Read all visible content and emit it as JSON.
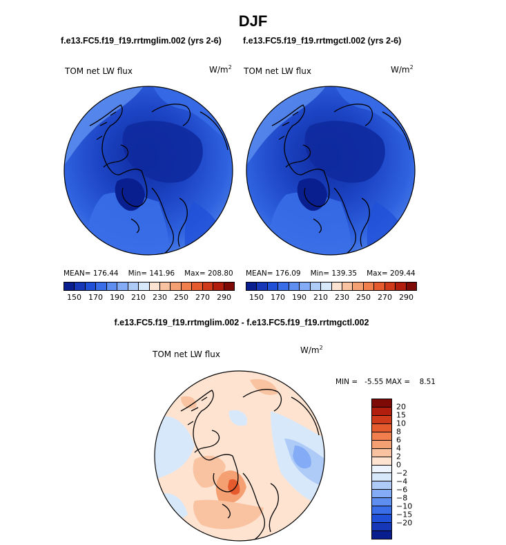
{
  "season": "DJF",
  "left_panel": {
    "title": "f.e13.FC5.f19_f19.rrtmglim.002 (yrs 2-6)",
    "variable": "TOM net LW flux",
    "units": "W/m",
    "units_exp": "2",
    "stats": {
      "mean": "MEAN= 176.44",
      "min": "Min= 141.96",
      "max": "Max= 208.80"
    }
  },
  "right_panel": {
    "title": "f.e13.FC5.f19_f19.rrtmgctl.002 (yrs 2-6)",
    "variable": "TOM net LW flux",
    "units": "W/m",
    "units_exp": "2",
    "stats": {
      "mean": "MEAN= 176.09",
      "min": "Min= 139.35",
      "max": "Max= 209.44"
    }
  },
  "diff_panel": {
    "title": "f.e13.FC5.f19_f19.rrtmglim.002 - f.e13.FC5.f19_f19.rrtmgctl.002",
    "variable": "TOM net LW flux",
    "units": "W/m",
    "units_exp": "2",
    "minmax": "MIN =   -5.55 MAX =    8.51"
  },
  "abs_colorbar": {
    "colors": [
      "#0a1f8f",
      "#1637b8",
      "#2150d8",
      "#3a6ee8",
      "#5d8ef0",
      "#84abf5",
      "#aecbf8",
      "#d8e8fb",
      "#fde3d0",
      "#f9c2a1",
      "#f5a073",
      "#f17f4d",
      "#e65b2e",
      "#cf3a1a",
      "#b21e0e",
      "#7e0a05"
    ],
    "ticks": [
      "150",
      "170",
      "190",
      "210",
      "230",
      "250",
      "270",
      "290"
    ]
  },
  "diff_colorbar": {
    "colors": [
      "#7e0a05",
      "#b21e0e",
      "#cf3a1a",
      "#e65b2e",
      "#f17f4d",
      "#f5a073",
      "#f9c2a1",
      "#fde3d0",
      "#eef4fd",
      "#d8e8fb",
      "#aecbf8",
      "#84abf5",
      "#5d8ef0",
      "#3a6ee8",
      "#2150d8",
      "#1637b8",
      "#0a1f8f"
    ],
    "ticks": [
      "20",
      "15",
      "10",
      "8",
      "6",
      "4",
      "2",
      "0",
      "−2",
      "−4",
      "−6",
      "−8",
      "−10",
      "−15",
      "−20"
    ]
  }
}
